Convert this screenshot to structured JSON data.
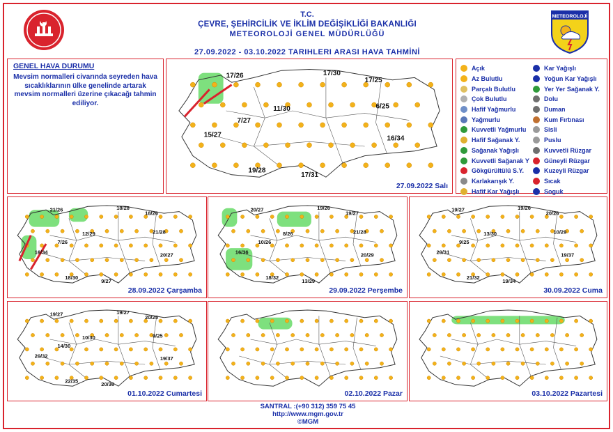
{
  "header": {
    "line1": "T.C.",
    "line2": "ÇEVRE, ŞEHİRCİLİK VE İKLİM DEĞİŞİKLİĞİ BAKANLIĞI",
    "line3": "METEOROLOJİ GENEL MÜDÜRLÜĞÜ",
    "line4": "27.09.2022 - 03.10.2022 TARIHLERI ARASI HAVA TAHMİNİ",
    "logo_right_text": "METEOROLOJİ"
  },
  "genel": {
    "title": "GENEL HAVA DURUMU",
    "body": "Mevsim normalleri civarında seyreden hava sıcaklıklarının ülke genelinde artarak mevsim normalleri üzerine çıkacağı tahmin ediliyor."
  },
  "legend": {
    "col1": [
      {
        "label": "Açık",
        "icon": "sun-icon",
        "color": "#f3b21a"
      },
      {
        "label": "Az Bulutlu",
        "icon": "sun-cloud-icon",
        "color": "#f3b21a"
      },
      {
        "label": "Parçalı Bulutlu",
        "icon": "partly-cloudy-icon",
        "color": "#e0c060"
      },
      {
        "label": "Çok Bulutlu",
        "icon": "cloudy-icon",
        "color": "#b0b0b0"
      },
      {
        "label": "Hafif Yağmurlu",
        "icon": "light-rain-icon",
        "color": "#6f8fc8"
      },
      {
        "label": "Yağmurlu",
        "icon": "rain-icon",
        "color": "#5a78b8"
      },
      {
        "label": "Kuvvetli Yağmurlu",
        "icon": "heavy-rain-icon",
        "color": "#2f9a3a"
      },
      {
        "label": "Hafif Sağanak Y.",
        "icon": "light-shower-icon",
        "color": "#e0b030"
      },
      {
        "label": "Sağanak Yağışlı",
        "icon": "shower-icon",
        "color": "#2f9a3a"
      },
      {
        "label": "Kuvvetli Sağanak Y",
        "icon": "heavy-shower-icon",
        "color": "#2f9a3a"
      },
      {
        "label": "Gökgürültülü S.Y.",
        "icon": "thunder-icon",
        "color": "#d9232d"
      },
      {
        "label": "Karlakarışık Y.",
        "icon": "sleet-icon",
        "color": "#8a8a8a"
      },
      {
        "label": "Hafif Kar Yağışlı",
        "icon": "light-snow-icon",
        "color": "#e0b030"
      }
    ],
    "col2": [
      {
        "label": "Kar Yağışlı",
        "icon": "snow-icon",
        "color": "#1a2fa8"
      },
      {
        "label": "Yoğun Kar Yağışlı",
        "icon": "heavy-snow-icon",
        "color": "#1a2fa8"
      },
      {
        "label": "Yer Yer Sağanak Y.",
        "icon": "scattered-shower-icon",
        "color": "#2f9a3a"
      },
      {
        "label": "Dolu",
        "icon": "hail-icon",
        "color": "#6f6f6f"
      },
      {
        "label": "Duman",
        "icon": "smoke-icon",
        "color": "#6f6f6f"
      },
      {
        "label": "Kum Fırtınası",
        "icon": "sandstorm-icon",
        "color": "#c07030"
      },
      {
        "label": "Sisli",
        "icon": "fog-icon",
        "color": "#9a9a9a"
      },
      {
        "label": "Puslu",
        "icon": "haze-icon",
        "color": "#9a9a9a"
      },
      {
        "label": "Kuvvetli Rüzgar",
        "icon": "strong-wind-icon",
        "color": "#6f6f6f"
      },
      {
        "label": "Güneyli Rüzgar",
        "icon": "south-wind-arrow-icon",
        "color": "#d9232d"
      },
      {
        "label": "Kuzeyli Rüzgar",
        "icon": "north-wind-arrow-icon",
        "color": "#1a2fa8"
      },
      {
        "label": "Sıcak",
        "icon": "hot-thermometer-icon",
        "color": "#d9232d"
      },
      {
        "label": "Soguk",
        "icon": "cold-thermometer-icon",
        "color": "#1a2fa8"
      }
    ]
  },
  "maps": [
    {
      "date": "27.09.2022 Salı",
      "temps": [
        "17/26",
        "17/30",
        "17/25",
        "11/30",
        "7/27",
        "6/25",
        "15/27",
        "16/34",
        "19/28",
        "17/31"
      ]
    },
    {
      "date": "28.09.2022 Çarşamba",
      "temps": [
        "21/26",
        "18/28",
        "18/26",
        "12/29",
        "7/26",
        "21/28",
        "16/34",
        "20/27",
        "18/30",
        "9/27"
      ]
    },
    {
      "date": "29.09.2022 Perşembe",
      "temps": [
        "20/27",
        "19/26",
        "19/27",
        "8/26",
        "10/26",
        "21/28",
        "16/36",
        "20/29",
        "18/32",
        "13/29"
      ]
    },
    {
      "date": "30.09.2022 Cuma",
      "temps": [
        "19/27",
        "19/26",
        "20/26",
        "13/30",
        "9/25",
        "10/29",
        "20/31",
        "19/37",
        "21/32",
        "19/34"
      ]
    },
    {
      "date": "01.10.2022 Cumartesi",
      "temps": [
        "19/27",
        "19/27",
        "20/25",
        "10/30",
        "14/30",
        "9/25",
        "20/32",
        "19/37",
        "22/35",
        "20/36"
      ]
    },
    {
      "date": "02.10.2022 Pazar",
      "temps": []
    },
    {
      "date": "03.10.2022 Pazartesi",
      "temps": []
    }
  ],
  "footer": {
    "phone": "SANTRAL :(+90 312) 359 75 45",
    "web": "http://www.mgm.gov.tr",
    "copy": "©MGM"
  },
  "colors": {
    "border": "#d9232d",
    "text": "#1a2fa8",
    "rain_zone": "#7ee07e",
    "sun": "#f3b21a"
  }
}
